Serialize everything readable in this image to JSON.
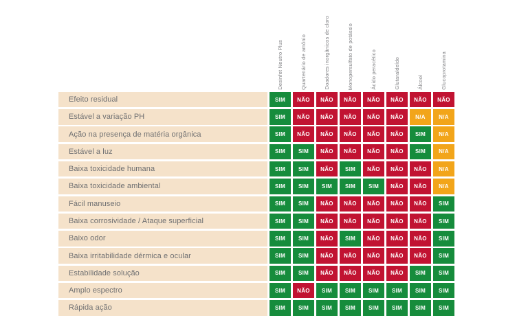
{
  "chart_data": {
    "type": "table",
    "title": "",
    "columns": [
      "Desinfet Neutro Plus",
      "Quartenário de amônio",
      "Doadores inorgânicos de cloro",
      "Monopersulfato de potássio",
      "Ácido peracético",
      "Glutaraldeído",
      "Álcool",
      "Glucoprotamina"
    ],
    "rows": [
      {
        "label": "Efeito residual",
        "values": [
          "SIM",
          "NÃO",
          "NÃO",
          "NÃO",
          "NÃO",
          "NÃO",
          "NÃO",
          "NÃO"
        ]
      },
      {
        "label": "Estável a variação PH",
        "values": [
          "SIM",
          "NÃO",
          "NÃO",
          "NÃO",
          "NÃO",
          "NÃO",
          "N/A",
          "N/A"
        ]
      },
      {
        "label": "Ação na presença de matéria orgânica",
        "values": [
          "SIM",
          "NÃO",
          "NÃO",
          "NÃO",
          "NÃO",
          "NÃO",
          "SIM",
          "N/A"
        ]
      },
      {
        "label": "Estável a luz",
        "values": [
          "SIM",
          "SIM",
          "NÃO",
          "NÃO",
          "NÃO",
          "NÃO",
          "SIM",
          "N/A"
        ]
      },
      {
        "label": "Baixa toxicidade humana",
        "values": [
          "SIM",
          "SIM",
          "NÃO",
          "SIM",
          "NÃO",
          "NÃO",
          "NÃO",
          "N/A"
        ]
      },
      {
        "label": "Baixa toxicidade ambiental",
        "values": [
          "SIM",
          "SIM",
          "SIM",
          "SIM",
          "SIM",
          "NÃO",
          "NÃO",
          "N/A"
        ]
      },
      {
        "label": "Fácil manuseio",
        "values": [
          "SIM",
          "SIM",
          "NÃO",
          "NÃO",
          "NÃO",
          "NÃO",
          "NÃO",
          "SIM"
        ]
      },
      {
        "label": "Baixa corrosividade / Ataque superficial",
        "values": [
          "SIM",
          "SIM",
          "NÃO",
          "NÃO",
          "NÃO",
          "NÃO",
          "NÃO",
          "SIM"
        ]
      },
      {
        "label": "Baixo odor",
        "values": [
          "SIM",
          "SIM",
          "NÃO",
          "SIM",
          "NÃO",
          "NÃO",
          "NÃO",
          "SIM"
        ]
      },
      {
        "label": "Baixa irritabilidade dérmica e ocular",
        "values": [
          "SIM",
          "SIM",
          "NÃO",
          "NÃO",
          "NÃO",
          "NÃO",
          "NÃO",
          "SIM"
        ]
      },
      {
        "label": "Estabilidade solução",
        "values": [
          "SIM",
          "SIM",
          "NÃO",
          "NÃO",
          "NÃO",
          "NÃO",
          "SIM",
          "SIM"
        ]
      },
      {
        "label": "Amplo espectro",
        "values": [
          "SIM",
          "NÃO",
          "SIM",
          "SIM",
          "SIM",
          "SIM",
          "SIM",
          "SIM"
        ]
      },
      {
        "label": "Rápida ação",
        "values": [
          "SIM",
          "SIM",
          "SIM",
          "SIM",
          "SIM",
          "SIM",
          "SIM",
          "SIM"
        ]
      }
    ],
    "value_colors": {
      "SIM": "#168C3C",
      "NÃO": "#C11332",
      "N/A": "#F2A51A"
    },
    "layout_hints": {
      "header_orientation": "vertical-bottom-up",
      "grid": "off"
    }
  },
  "colors": {
    "row_label_background": "#F5E2CA",
    "row_label_text": "#6E6F71",
    "column_header_text": "#808184",
    "cell_text": "#FFFFFF",
    "page_background": "#FFFFFF"
  }
}
